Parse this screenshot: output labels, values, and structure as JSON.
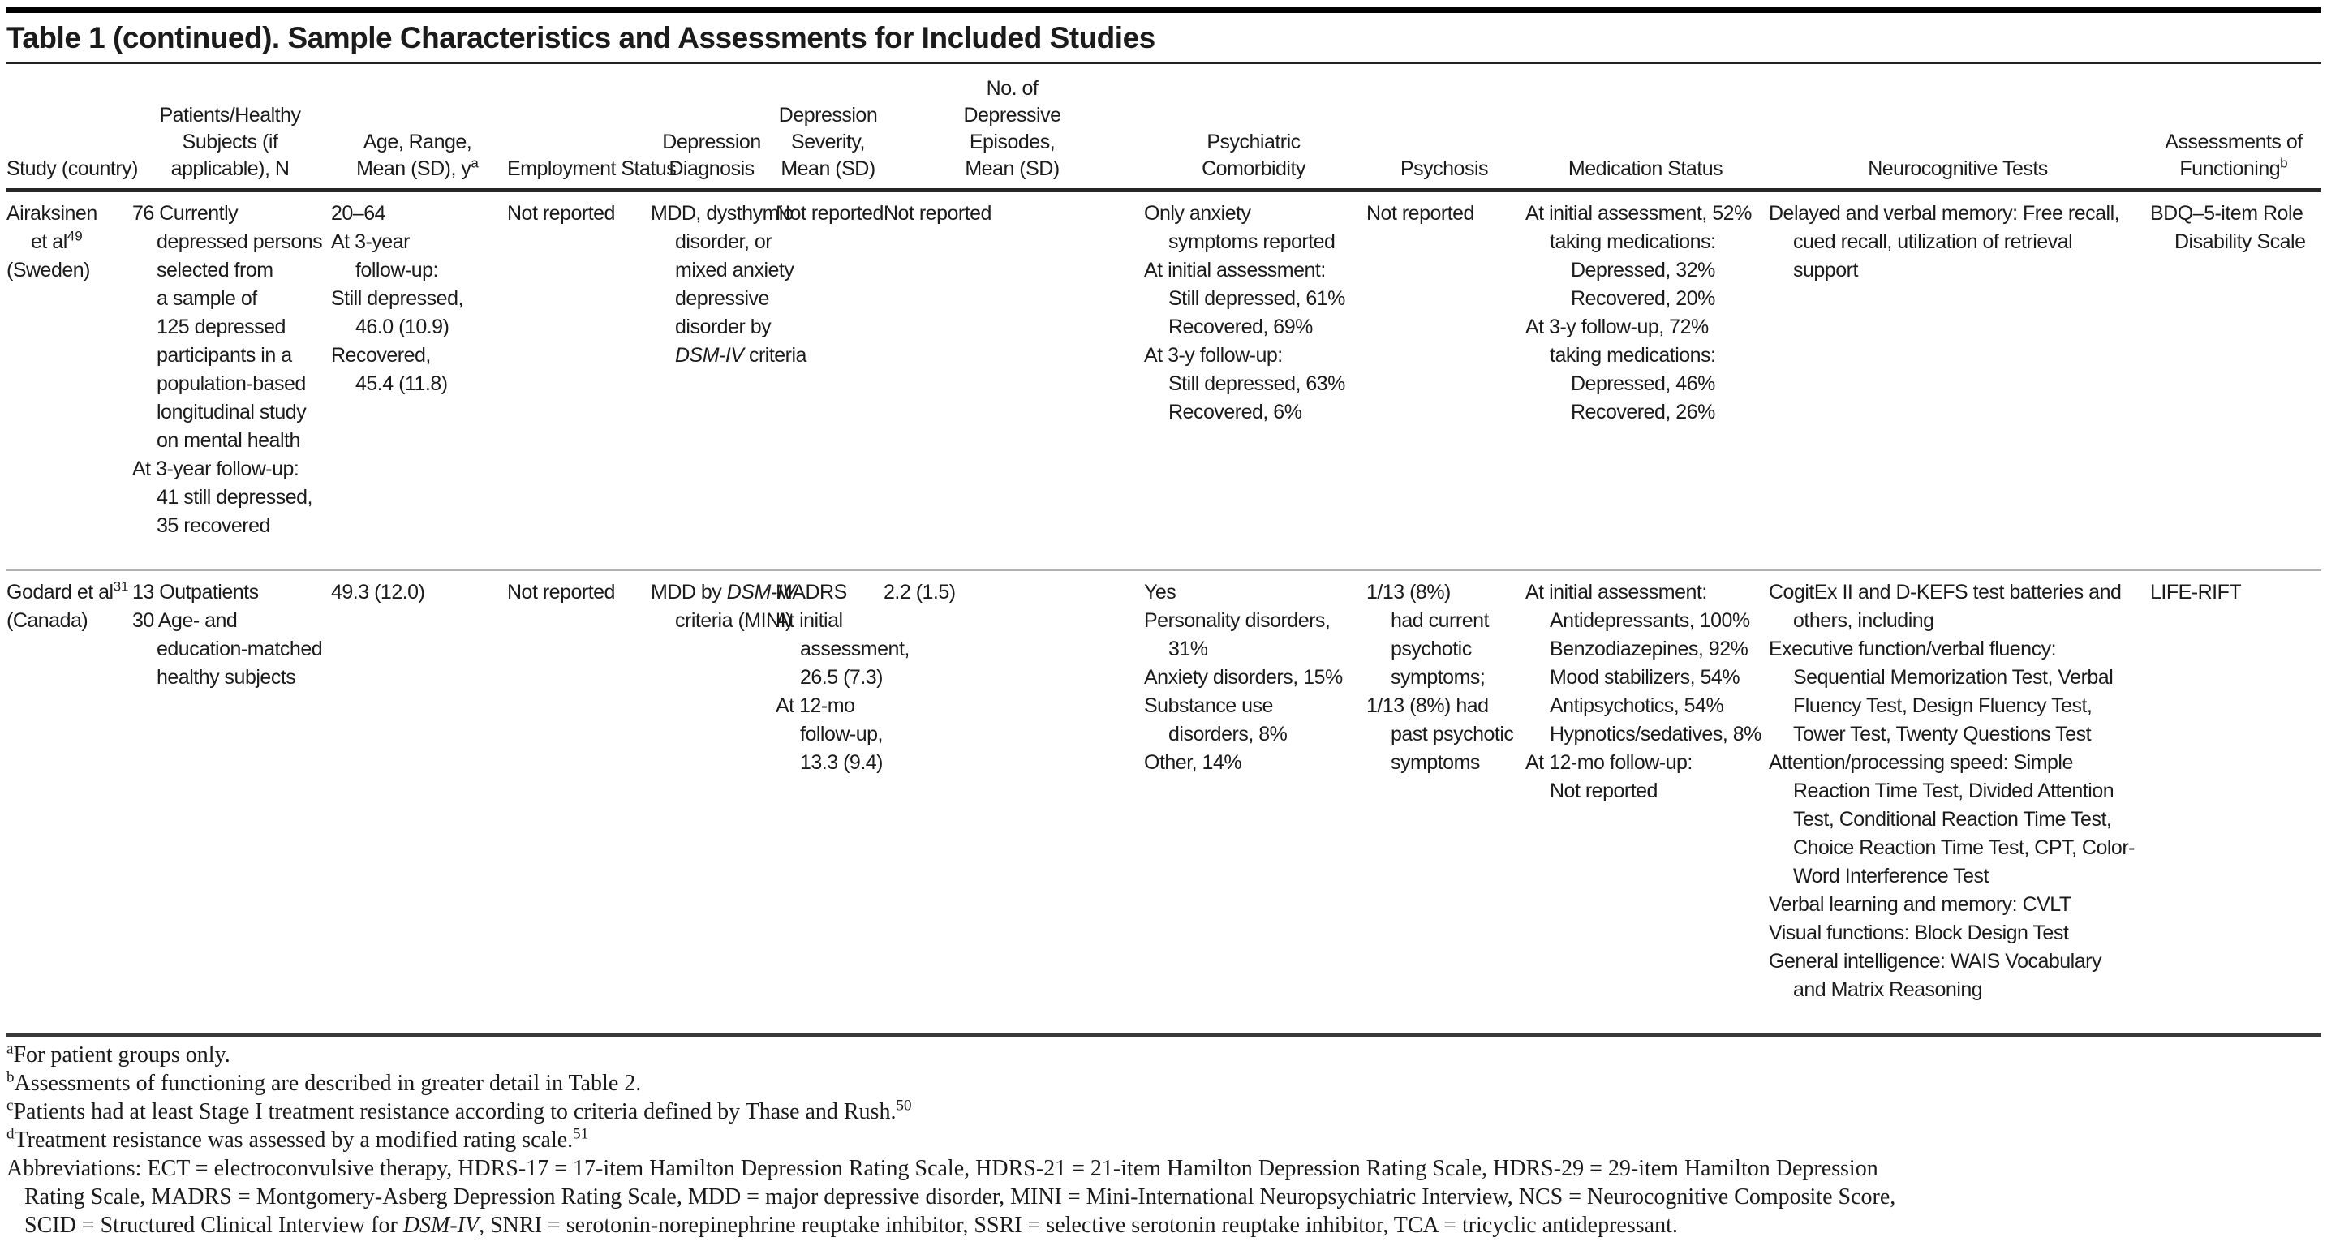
{
  "page": {
    "title": "Table 1 (continued). Sample Characteristics and Assessments for Included Studies"
  },
  "colors": {
    "text": "#1b1b1b",
    "top_bar": "#000000",
    "header_rule": "#262626",
    "row_divider": "#b0b0b0",
    "footnote_rule": "#3a3a3a",
    "bottom_rule": "#1f1f1f"
  },
  "table": {
    "headers": [
      [
        "Study (country)"
      ],
      [
        "Patients/Healthy",
        "Subjects (if",
        "applicable), N"
      ],
      [
        "Age, Range,",
        "Mean (SD), y^{a}"
      ],
      [
        "Employment Status"
      ],
      [
        "Depression",
        "Diagnosis"
      ],
      [
        "Depression",
        "Severity,",
        "Mean (SD)"
      ],
      [
        "No. of",
        "Depressive",
        "Episodes,",
        "Mean (SD)"
      ],
      [
        "Psychiatric",
        "Comorbidity"
      ],
      [
        "Psychosis"
      ],
      [
        "Medication Status"
      ],
      [
        "Neurocognitive Tests"
      ],
      [
        "Assessments of",
        "Functioning^{b}"
      ]
    ],
    "rows": [
      {
        "study_id": "airaksinen-sweden",
        "cells": [
          [
            "Airaksinen",
            ">et al^{49}",
            "(Sweden)"
          ],
          [
            "76 Currently",
            ">depressed persons",
            ">selected from",
            ">a sample of",
            ">125 depressed",
            ">participants in a",
            ">population-based",
            ">longitudinal study",
            ">on mental health",
            "At 3-year follow-up:",
            ">41 still depressed,",
            ">35 recovered"
          ],
          [
            "20–64",
            "At 3-year",
            ">follow-up:",
            "Still depressed,",
            ">46.0 (10.9)",
            "Recovered,",
            ">45.4 (11.8)"
          ],
          [
            "Not reported"
          ],
          [
            "MDD, dysthymic",
            ">disorder, or",
            ">mixed anxiety",
            ">depressive",
            ">disorder by",
            ">*DSM-IV* criteria"
          ],
          [
            "Not reported"
          ],
          [
            "Not reported"
          ],
          [
            "Only anxiety",
            ">symptoms reported",
            "At initial assessment:",
            ">Still depressed, 61%",
            ">Recovered, 69%",
            "At 3-y follow-up:",
            ">Still depressed, 63%",
            ">Recovered, 6%"
          ],
          [
            "Not reported"
          ],
          [
            "At initial assessment, 52%",
            ">taking medications:",
            ">>Depressed, 32%",
            ">>Recovered, 20%",
            "At 3-y follow-up, 72%",
            ">taking medications:",
            ">>Depressed, 46%",
            ">>Recovered, 26%"
          ],
          [
            "Delayed and verbal memory: Free recall,",
            ">cued recall, utilization of retrieval",
            ">support"
          ],
          [
            "BDQ–5-item Role",
            ">Disability Scale"
          ]
        ]
      },
      {
        "study_id": "godard-canada",
        "cells": [
          [
            "Godard et al^{31}",
            "(Canada)"
          ],
          [
            "13 Outpatients",
            "30 Age- and",
            ">education-matched",
            ">healthy subjects"
          ],
          [
            "49.3 (12.0)"
          ],
          [
            "Not reported"
          ],
          [
            "MDD by *DSM-IV*",
            ">criteria (MINI)"
          ],
          [
            "MADRS",
            "At initial",
            ">assessment,",
            ">26.5 (7.3)",
            "At 12-mo",
            ">follow-up,",
            ">13.3 (9.4)"
          ],
          [
            "2.2 (1.5)"
          ],
          [
            "Yes",
            "Personality disorders,",
            ">31%",
            "Anxiety disorders, 15%",
            "Substance use",
            ">disorders, 8%",
            "Other, 14%"
          ],
          [
            "1/13 (8%)",
            ">had current",
            ">psychotic",
            ">symptoms;",
            "1/13 (8%) had",
            ">past psychotic",
            ">symptoms"
          ],
          [
            "At initial assessment:",
            ">Antidepressants, 100%",
            ">Benzodiazepines, 92%",
            ">Mood stabilizers, 54%",
            ">Antipsychotics, 54%",
            ">Hypnotics/sedatives, 8%",
            "At 12-mo follow-up:",
            ">Not reported"
          ],
          [
            "CogitEx II and D-KEFS test batteries and",
            ">others, including",
            "Executive function/verbal fluency:",
            ">Sequential Memorization Test, Verbal",
            ">Fluency Test, Design Fluency Test,",
            ">Tower Test, Twenty Questions Test",
            "Attention/processing speed: Simple",
            ">Reaction Time Test, Divided Attention",
            ">Test, Conditional Reaction Time Test,",
            ">Choice Reaction Time Test, CPT, Color-",
            ">Word Interference Test",
            "Verbal learning and memory: CVLT",
            "Visual functions: Block Design Test",
            "General intelligence: WAIS Vocabulary",
            ">and Matrix Reasoning"
          ],
          [
            "LIFE-RIFT"
          ]
        ]
      }
    ]
  },
  "footnotes": {
    "lines": [
      "^{a}For patient groups only.",
      "^{b}Assessments of functioning are described in greater detail in Table 2.",
      "^{c}Patients had at least Stage I treatment resistance according to criteria defined by Thase and Rush.^{50}",
      "^{d}Treatment resistance was assessed by a modified rating scale.^{51}",
      "Abbreviations: ECT = electroconvulsive therapy, HDRS-17 = 17-item Hamilton Depression Rating Scale, HDRS-21 = 21-item Hamilton Depression Rating Scale, HDRS-29 = 29-item Hamilton Depression",
      ">Rating Scale, MADRS = Montgomery-Asberg Depression Rating Scale, MDD = major depressive disorder, MINI = Mini-International Neuropsychiatric Interview, NCS = Neurocognitive Composite Score,",
      ">SCID = Structured Clinical Interview for *DSM-IV*, SNRI = serotonin-norepinephrine reuptake inhibitor, SSRI = selective serotonin reuptake inhibitor, TCA = tricyclic antidepressant."
    ]
  }
}
